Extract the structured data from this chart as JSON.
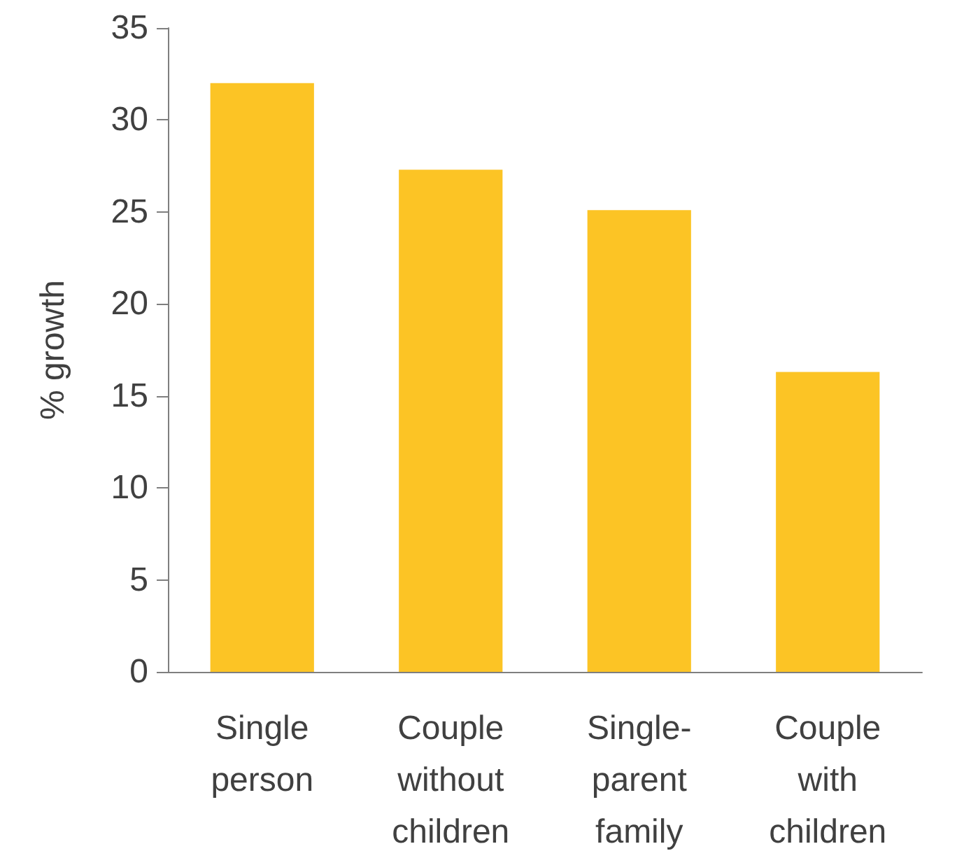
{
  "chart_data": {
    "type": "bar",
    "ylabel": "% growth",
    "categories": [
      "Single\nperson",
      "Couple\nwithout\nchildren",
      "Single-\nparent\nfamily",
      "Couple\nwith\nchildren"
    ],
    "values": [
      32,
      27.3,
      25.1,
      16.3
    ],
    "color": "#fcc425",
    "ylim": [
      0,
      35
    ],
    "yticks": [
      0,
      5,
      10,
      15,
      20,
      25,
      30,
      35
    ],
    "grid": false
  }
}
